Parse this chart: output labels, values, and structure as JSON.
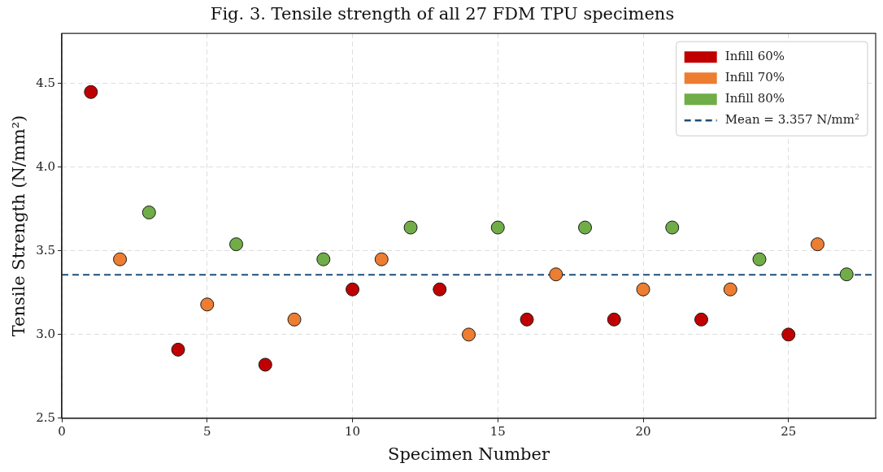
{
  "chart_data": {
    "type": "scatter",
    "title": "Fig. 3. Tensile strength of all 27 FDM TPU specimens",
    "xlabel": "Specimen Number",
    "ylabel": "Tensile Strength (N/mm²)",
    "series": [
      {
        "name": "Infill 60%",
        "color": "#c00000",
        "x": [
          1,
          4,
          7,
          10,
          13,
          16,
          19,
          22,
          25
        ],
        "values": [
          4.45,
          2.91,
          2.82,
          3.27,
          3.27,
          3.09,
          3.09,
          3.09,
          3.0
        ]
      },
      {
        "name": "Infill 70%",
        "color": "#ed7d31",
        "x": [
          2,
          5,
          8,
          11,
          14,
          17,
          20,
          23,
          26
        ],
        "values": [
          3.45,
          3.18,
          3.09,
          3.45,
          3.0,
          3.36,
          3.27,
          3.27,
          3.54
        ]
      },
      {
        "name": "Infill 80%",
        "color": "#70ad47",
        "x": [
          3,
          6,
          9,
          12,
          15,
          18,
          21,
          24,
          27
        ],
        "values": [
          3.73,
          3.54,
          3.45,
          3.64,
          3.64,
          3.64,
          3.64,
          3.45,
          3.36
        ]
      }
    ],
    "ref_lines": [
      {
        "axis": "y",
        "value": 3.357,
        "label": "Mean = 3.357 N/mm²",
        "color": "#1f4e79",
        "line_style": "dashed"
      }
    ],
    "xlim": [
      0,
      28
    ],
    "xticks": [
      0,
      5,
      10,
      15,
      20,
      25
    ],
    "ylim": [
      2.5,
      4.8
    ],
    "yticks": [
      2.5,
      {
        "value": 3,
        "label": "3.0"
      },
      3.5,
      {
        "value": 4,
        "label": "4.0"
      },
      4.5
    ],
    "grid": true,
    "legend": "top right",
    "marker": "circle"
  }
}
